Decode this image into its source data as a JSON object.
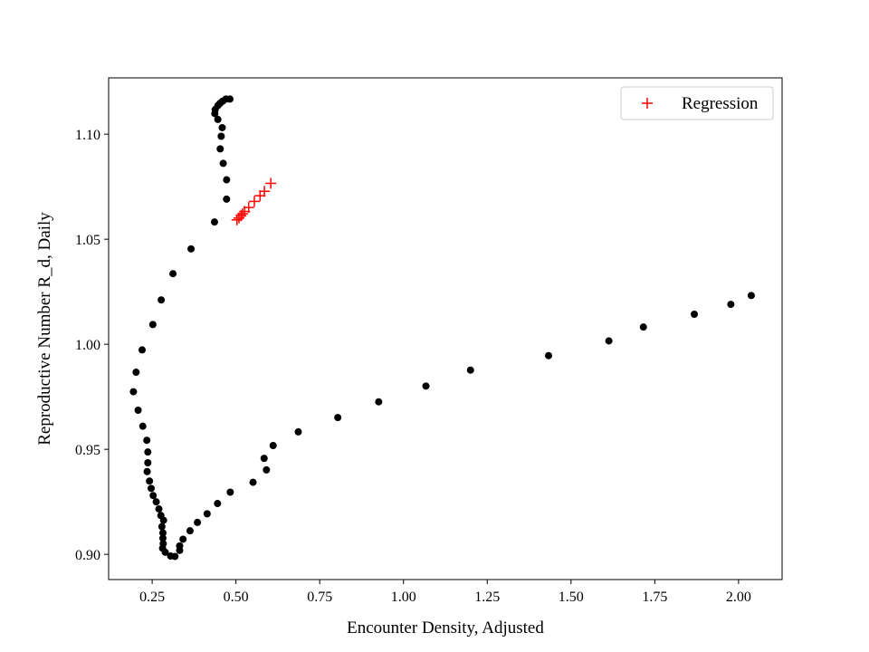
{
  "chart_data": {
    "type": "scatter",
    "title": "",
    "xlabel": "Encounter Density, Adjusted",
    "ylabel": "Reproductive Number R_d, Daily",
    "xlim": [
      0.12,
      2.13
    ],
    "ylim": [
      0.888,
      1.1268
    ],
    "grid": false,
    "legend_position": "top-right",
    "x_ticks": [
      0.25,
      0.5,
      0.75,
      1.0,
      1.25,
      1.5,
      1.75,
      2.0
    ],
    "x_tick_labels": [
      "0.25",
      "0.50",
      "0.75",
      "1.00",
      "1.25",
      "1.50",
      "1.75",
      "2.00"
    ],
    "y_ticks": [
      0.9,
      0.95,
      1.0,
      1.05,
      1.1
    ],
    "y_tick_labels": [
      "0.90",
      "0.95",
      "1.00",
      "1.05",
      "1.10"
    ],
    "series": [
      {
        "marker": "dot",
        "color": "#000000",
        "points": [
          [
            0.482,
            1.1167
          ],
          [
            0.47,
            1.1167
          ],
          [
            0.46,
            1.1157
          ],
          [
            0.452,
            1.1146
          ],
          [
            0.446,
            1.1136
          ],
          [
            0.438,
            1.1117
          ],
          [
            0.437,
            1.1098
          ],
          [
            0.446,
            1.107
          ],
          [
            0.459,
            1.1031
          ],
          [
            0.456,
            1.099
          ],
          [
            0.453,
            1.093
          ],
          [
            0.462,
            1.0861
          ],
          [
            0.472,
            1.0783
          ],
          [
            0.472,
            1.0691
          ],
          [
            0.436,
            1.0582
          ],
          [
            0.366,
            1.0454
          ],
          [
            0.312,
            1.0336
          ],
          [
            0.277,
            1.0211
          ],
          [
            0.252,
            1.0094
          ],
          [
            0.22,
            0.9973
          ],
          [
            0.202,
            0.9867
          ],
          [
            0.194,
            0.9774
          ],
          [
            0.208,
            0.9686
          ],
          [
            0.222,
            0.961
          ],
          [
            0.234,
            0.9543
          ],
          [
            0.237,
            0.9487
          ],
          [
            0.237,
            0.9436
          ],
          [
            0.235,
            0.9394
          ],
          [
            0.242,
            0.9349
          ],
          [
            0.247,
            0.9314
          ],
          [
            0.253,
            0.928
          ],
          [
            0.262,
            0.925
          ],
          [
            0.27,
            0.9216
          ],
          [
            0.276,
            0.9185
          ],
          [
            0.284,
            0.9162
          ],
          [
            0.279,
            0.9132
          ],
          [
            0.282,
            0.9102
          ],
          [
            0.282,
            0.9077
          ],
          [
            0.283,
            0.9051
          ],
          [
            0.281,
            0.9029
          ],
          [
            0.289,
            0.901
          ],
          [
            0.305,
            0.8992
          ],
          [
            0.318,
            0.899
          ],
          [
            0.332,
            0.9019
          ],
          [
            0.332,
            0.904
          ],
          [
            0.342,
            0.9072
          ],
          [
            0.363,
            0.9112
          ],
          [
            0.385,
            0.9152
          ],
          [
            0.414,
            0.9193
          ],
          [
            0.445,
            0.9242
          ],
          [
            0.483,
            0.9296
          ],
          [
            0.551,
            0.9343
          ],
          [
            0.591,
            0.9402
          ],
          [
            0.584,
            0.9457
          ],
          [
            0.611,
            0.9518
          ],
          [
            0.686,
            0.9583
          ],
          [
            0.804,
            0.9651
          ],
          [
            0.926,
            0.9726
          ],
          [
            1.067,
            0.9801
          ],
          [
            1.2,
            0.9877
          ],
          [
            1.433,
            0.9946
          ],
          [
            1.613,
            1.0016
          ],
          [
            1.716,
            1.0082
          ],
          [
            1.868,
            1.0143
          ],
          [
            1.977,
            1.019
          ],
          [
            2.038,
            1.0232
          ]
        ]
      },
      {
        "name": "Regression",
        "marker": "plus",
        "color": "#ff0000",
        "points": [
          [
            0.503,
            1.0592
          ],
          [
            0.509,
            1.0601
          ],
          [
            0.515,
            1.0612
          ],
          [
            0.52,
            1.0621
          ],
          [
            0.526,
            1.0632
          ],
          [
            0.538,
            1.0651
          ],
          [
            0.555,
            1.068
          ],
          [
            0.572,
            1.0707
          ],
          [
            0.585,
            1.0728
          ],
          [
            0.604,
            1.0766
          ]
        ]
      }
    ]
  }
}
